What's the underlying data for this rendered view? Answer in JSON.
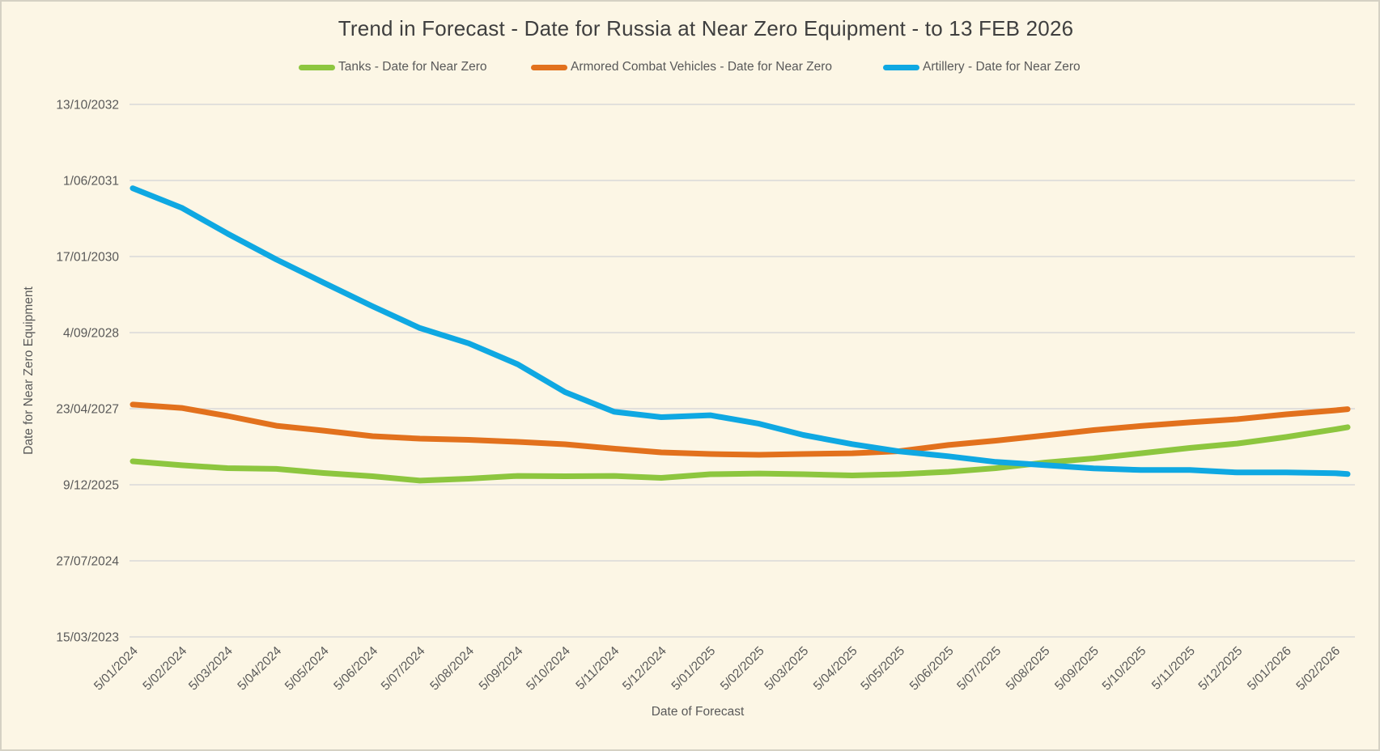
{
  "window": {
    "background_color": "#FCF6E5",
    "border_color": "#D5D1C4"
  },
  "style": {
    "title_color": "#3F3F3F",
    "text_color": "#595959",
    "gridline_color": "#D9D9D9",
    "line_width": 7
  },
  "chart_data": {
    "type": "line",
    "title": "Trend in Forecast - Date for Russia at Near Zero Equipment - to 13 FEB 2026",
    "xlabel": "Date of Forecast",
    "ylabel": "Date for Near Zero Equipment",
    "legend_position": "top",
    "grid": "horizontal",
    "y_tick_labels_top_to_bottom": [
      "13/10/2032",
      "1/06/2031",
      "17/01/2030",
      "4/09/2028",
      "23/04/2027",
      "9/12/2025",
      "27/07/2024",
      "15/03/2023"
    ],
    "y_axis": {
      "min_date": "15/03/2023",
      "max_date": "13/10/2032",
      "interval_days": 500
    },
    "x_tick_labels": [
      "5/01/2024",
      "5/02/2024",
      "5/03/2024",
      "5/04/2024",
      "5/05/2024",
      "5/06/2024",
      "5/07/2024",
      "5/08/2024",
      "5/09/2024",
      "5/10/2024",
      "5/11/2024",
      "5/12/2024",
      "5/01/2025",
      "5/02/2025",
      "5/03/2025",
      "5/04/2025",
      "5/05/2025",
      "5/06/2025",
      "5/07/2025",
      "5/08/2025",
      "5/09/2025",
      "5/10/2025",
      "5/11/2025",
      "5/12/2025",
      "5/01/2026",
      "5/02/2026"
    ],
    "x_dates": [
      "5/01/2024",
      "5/02/2024",
      "5/03/2024",
      "5/04/2024",
      "5/05/2024",
      "5/06/2024",
      "5/07/2024",
      "5/08/2024",
      "5/09/2024",
      "5/10/2024",
      "5/11/2024",
      "5/12/2024",
      "5/01/2025",
      "5/02/2025",
      "5/03/2025",
      "5/04/2025",
      "5/05/2025",
      "5/06/2025",
      "5/07/2025",
      "5/08/2025",
      "5/09/2025",
      "5/10/2025",
      "5/11/2025",
      "5/12/2025",
      "5/01/2026",
      "5/02/2026",
      "13/02/2026"
    ],
    "series": [
      {
        "name": "Tanks - Date for Near Zero",
        "color": "#8DC63F",
        "values": [
          "12/05/2026",
          "16/04/2026",
          "28/03/2026",
          "23/03/2026",
          "24/02/2026",
          "3/02/2026",
          "5/01/2026",
          "18/01/2026",
          "5/02/2026",
          "3/02/2026",
          "5/02/2026",
          "23/01/2026",
          "16/02/2026",
          "21/02/2026",
          "16/02/2026",
          "8/02/2026",
          "16/02/2026",
          "4/03/2026",
          "28/03/2026",
          "4/05/2026",
          "31/05/2026",
          "4/07/2026",
          "8/08/2026",
          "6/09/2026",
          "19/10/2026",
          "8/12/2026",
          "22/12/2026"
        ]
      },
      {
        "name": "Armored Combat Vehicles - Date for Near Zero",
        "color": "#E2711D",
        "values": [
          "20/05/2027",
          "28/04/2027",
          "6/03/2027",
          "1/01/2027",
          "30/11/2026",
          "24/10/2026",
          "8/10/2026",
          "30/09/2026",
          "17/09/2026",
          "1/09/2026",
          "3/08/2026",
          "10/07/2026",
          "29/06/2026",
          "24/06/2026",
          "29/06/2026",
          "4/07/2026",
          "18/07/2026",
          "27/08/2026",
          "25/09/2026",
          "29/10/2026",
          "3/12/2026",
          "30/12/2026",
          "23/01/2027",
          "13/02/2027",
          "17/03/2027",
          "12/04/2027",
          "20/04/2027"
        ]
      },
      {
        "name": "Artillery - Date for Near Zero",
        "color": "#0FA8E2",
        "values": [
          "11/04/2031",
          "4/12/2030",
          "17/06/2030",
          "29/12/2029",
          "29/07/2029",
          "24/02/2029",
          "4/10/2028",
          "25/06/2028",
          "9/02/2028",
          "10/08/2027",
          "3/04/2027",
          "26/02/2027",
          "11/03/2027",
          "14/01/2027",
          "1/11/2026",
          "2/09/2026",
          "16/07/2026",
          "14/06/2026",
          "8/05/2026",
          "17/04/2026",
          "27/03/2026",
          "16/03/2026",
          "16/03/2026",
          "28/02/2026",
          "28/02/2026",
          "23/02/2026",
          "17/02/2026"
        ]
      }
    ]
  }
}
